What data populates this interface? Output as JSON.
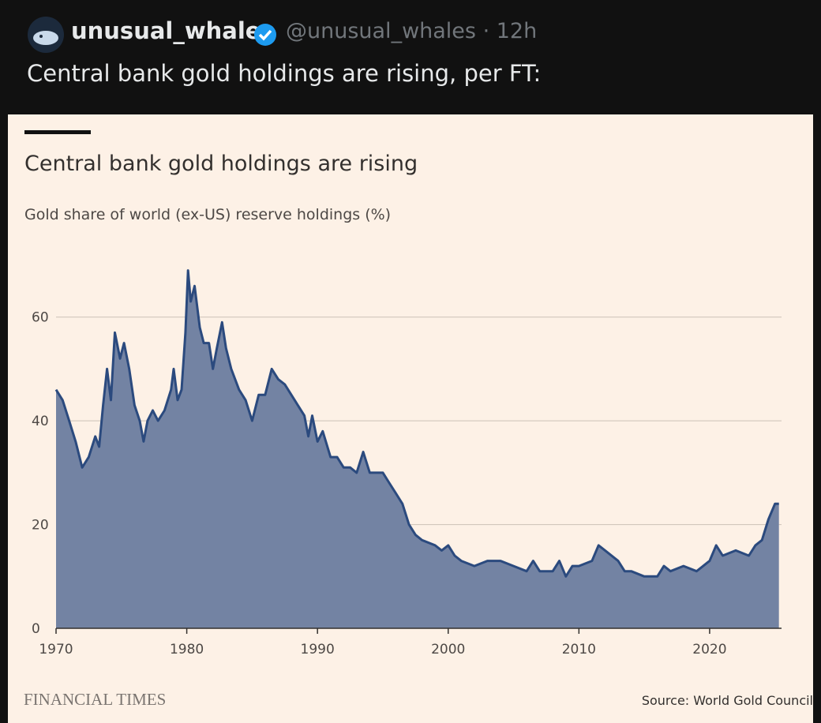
{
  "post": {
    "display_name": "unusual_whales",
    "handle": "@unusual_whales · 12h",
    "text": "Central bank gold holdings are rising, per FT:"
  },
  "chart_data": {
    "type": "area",
    "title": "Central bank gold holdings are rising",
    "subtitle": "Gold share of world (ex-US) reserve holdings (%)",
    "x": [
      1970,
      1970.5,
      1971,
      1971.5,
      1972,
      1972.5,
      1973,
      1973.3,
      1973.6,
      1973.9,
      1974.2,
      1974.5,
      1974.9,
      1975.2,
      1975.6,
      1976,
      1976.4,
      1976.7,
      1977,
      1977.4,
      1977.8,
      1978.3,
      1978.8,
      1979,
      1979.3,
      1979.6,
      1979.9,
      1980.1,
      1980.3,
      1980.6,
      1981,
      1981.3,
      1981.7,
      1982,
      1982.3,
      1982.7,
      1983,
      1983.4,
      1984,
      1984.5,
      1985,
      1985.5,
      1986,
      1986.5,
      1987,
      1987.5,
      1988,
      1988.5,
      1989,
      1989.3,
      1989.6,
      1990,
      1990.4,
      1991,
      1991.5,
      1992,
      1992.5,
      1993,
      1993.5,
      1994,
      1994.5,
      1995,
      1995.5,
      1996,
      1996.5,
      1997,
      1997.5,
      1998,
      1999,
      1999.5,
      2000,
      2000.5,
      2001,
      2002,
      2003,
      2004,
      2005,
      2006,
      2006.5,
      2007,
      2008,
      2008.5,
      2009,
      2009.5,
      2010,
      2011,
      2011.5,
      2012,
      2013,
      2013.5,
      2014,
      2015,
      2016,
      2016.5,
      2017,
      2018,
      2019,
      2020,
      2020.5,
      2021,
      2022,
      2023,
      2023.5,
      2024,
      2024.5,
      2025,
      2025.3
    ],
    "values": [
      46,
      44,
      40,
      36,
      31,
      33,
      37,
      35,
      43,
      50,
      44,
      57,
      52,
      55,
      50,
      43,
      40,
      36,
      40,
      42,
      40,
      42,
      46,
      50,
      44,
      46,
      57,
      69,
      63,
      66,
      58,
      55,
      55,
      50,
      54,
      59,
      54,
      50,
      46,
      44,
      40,
      45,
      45,
      50,
      48,
      47,
      45,
      43,
      41,
      37,
      41,
      36,
      38,
      33,
      33,
      31,
      31,
      30,
      34,
      30,
      30,
      30,
      28,
      26,
      24,
      20,
      18,
      17,
      16,
      15,
      16,
      14,
      13,
      12,
      13,
      13,
      12,
      11,
      13,
      11,
      11,
      13,
      10,
      12,
      12,
      13,
      16,
      15,
      13,
      11,
      11,
      10,
      10,
      12,
      11,
      12,
      11,
      13,
      16,
      14,
      15,
      14,
      16,
      17,
      21,
      24,
      24
    ],
    "color": "#7383a3",
    "line_color": "#2b4a7e",
    "xlim": [
      1970,
      2025.5
    ],
    "xticks": [
      1970,
      1980,
      1990,
      2000,
      2010,
      2020
    ],
    "ylim": [
      0,
      70
    ],
    "yticks": [
      0,
      20,
      40,
      60
    ],
    "grid": true,
    "brand": "FINANCIAL TIMES",
    "source": "Source: World Gold Council"
  }
}
